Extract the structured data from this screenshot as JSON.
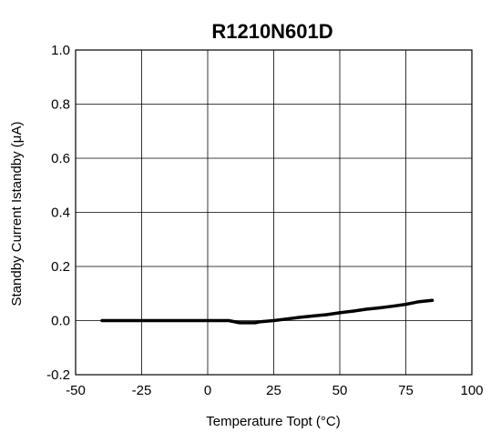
{
  "chart_data": {
    "type": "line",
    "title": "R1210N601D",
    "xlabel": "Temperature Topt (°C)",
    "ylabel": "Standby Current Istandby (μA)",
    "xlim": [
      -50,
      100
    ],
    "ylim": [
      -0.2,
      1.0
    ],
    "x_ticks": [
      "-50",
      "-25",
      "0",
      "25",
      "50",
      "75",
      "100"
    ],
    "y_ticks": [
      "-0.2",
      "0.0",
      "0.2",
      "0.4",
      "0.6",
      "0.8",
      "1.0"
    ],
    "grid": true,
    "series": [
      {
        "color": "#000000",
        "x": [
          -40,
          -20,
          0,
          8,
          12,
          18,
          20,
          25,
          30,
          35,
          40,
          45,
          50,
          55,
          60,
          65,
          70,
          75,
          80,
          85
        ],
        "y": [
          0.0,
          0.0,
          0.0,
          0.0,
          -0.008,
          -0.008,
          -0.004,
          0.0,
          0.006,
          0.012,
          0.017,
          0.022,
          0.029,
          0.035,
          0.042,
          0.047,
          0.053,
          0.06,
          0.07,
          0.075
        ]
      }
    ]
  }
}
